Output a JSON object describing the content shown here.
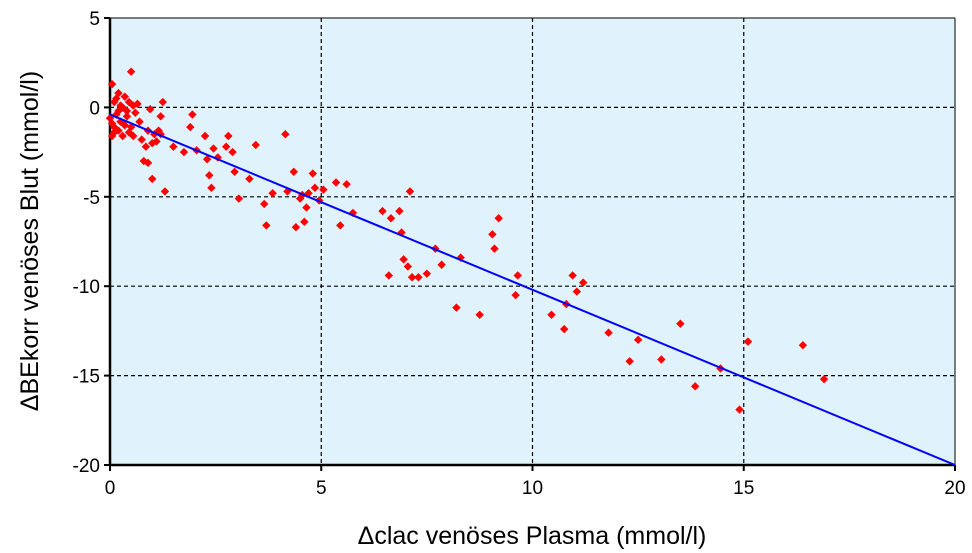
{
  "chart_data": {
    "type": "scatter",
    "title": "",
    "xlabel": "Δclac venöses Plasma (mmol/l)",
    "ylabel": "ΔBEkorr venöses Blut (mmol/l)",
    "xlim": [
      0,
      20
    ],
    "ylim": [
      -20,
      5
    ],
    "xticks": [
      "0",
      "5",
      "10",
      "15",
      "20"
    ],
    "yticks": [
      "5",
      "0",
      "-5",
      "-10",
      "-15",
      "-20"
    ],
    "xtick_values": [
      0,
      5,
      10,
      15,
      20
    ],
    "ytick_values": [
      5,
      0,
      -5,
      -10,
      -15,
      -20
    ],
    "grid": true,
    "grid_style": "dashed",
    "background_color": "#e0f2fb",
    "point_color": "#ff0000",
    "line_color": "#0000ff",
    "regression_line": {
      "x": [
        0,
        20
      ],
      "y": [
        -0.4,
        -20
      ]
    },
    "series": [
      {
        "points": [
          [
            0.05,
            1.3
          ],
          [
            0.1,
            0.3
          ],
          [
            0.15,
            0.5
          ],
          [
            0.2,
            0.8
          ],
          [
            0.25,
            0.1
          ],
          [
            0.3,
            0.0
          ],
          [
            0.35,
            0.6
          ],
          [
            0.4,
            -0.2
          ],
          [
            0.45,
            0.3
          ],
          [
            0.5,
            2.0
          ],
          [
            0.55,
            0.1
          ],
          [
            0.6,
            -0.3
          ],
          [
            0.65,
            0.2
          ],
          [
            0.0,
            -0.6
          ],
          [
            0.05,
            -0.9
          ],
          [
            0.1,
            -1.1
          ],
          [
            0.15,
            -0.4
          ],
          [
            0.2,
            -1.3
          ],
          [
            0.25,
            -0.8
          ],
          [
            0.3,
            -1.6
          ],
          [
            0.35,
            -1.0
          ],
          [
            0.4,
            -0.5
          ],
          [
            0.45,
            -1.4
          ],
          [
            0.05,
            -1.6
          ],
          [
            0.1,
            -1.4
          ],
          [
            0.2,
            -0.2
          ],
          [
            0.5,
            -1.1
          ],
          [
            0.55,
            -1.6
          ],
          [
            0.7,
            -0.8
          ],
          [
            0.75,
            -1.8
          ],
          [
            0.8,
            -3.0
          ],
          [
            0.85,
            -2.2
          ],
          [
            0.9,
            -1.3
          ],
          [
            0.95,
            -0.1
          ],
          [
            1.0,
            -4.0
          ],
          [
            1.05,
            -1.5
          ],
          [
            1.1,
            -1.9
          ],
          [
            1.15,
            -1.3
          ],
          [
            1.2,
            -0.5
          ],
          [
            1.25,
            0.3
          ],
          [
            1.3,
            -4.7
          ],
          [
            0.9,
            -3.1
          ],
          [
            1.0,
            -2.0
          ],
          [
            1.2,
            -1.5
          ],
          [
            1.5,
            -2.2
          ],
          [
            1.75,
            -2.5
          ],
          [
            1.9,
            -1.1
          ],
          [
            1.95,
            -0.4
          ],
          [
            2.05,
            -2.4
          ],
          [
            2.25,
            -1.6
          ],
          [
            2.3,
            -2.9
          ],
          [
            2.35,
            -3.8
          ],
          [
            2.4,
            -4.5
          ],
          [
            2.45,
            -2.3
          ],
          [
            2.55,
            -2.8
          ],
          [
            2.75,
            -2.2
          ],
          [
            2.8,
            -1.6
          ],
          [
            2.9,
            -2.5
          ],
          [
            2.95,
            -3.6
          ],
          [
            3.05,
            -5.1
          ],
          [
            3.3,
            -4.0
          ],
          [
            3.45,
            -2.1
          ],
          [
            3.65,
            -5.4
          ],
          [
            3.7,
            -6.6
          ],
          [
            3.85,
            -4.8
          ],
          [
            4.15,
            -1.5
          ],
          [
            4.2,
            -4.7
          ],
          [
            4.35,
            -3.6
          ],
          [
            4.4,
            -6.7
          ],
          [
            4.5,
            -5.1
          ],
          [
            4.55,
            -4.9
          ],
          [
            4.6,
            -6.4
          ],
          [
            4.65,
            -5.6
          ],
          [
            4.7,
            -4.8
          ],
          [
            4.8,
            -3.7
          ],
          [
            4.85,
            -4.5
          ],
          [
            4.95,
            -5.2
          ],
          [
            5.05,
            -4.6
          ],
          [
            5.35,
            -4.2
          ],
          [
            5.45,
            -6.6
          ],
          [
            5.6,
            -4.3
          ],
          [
            5.75,
            -5.9
          ],
          [
            6.45,
            -5.8
          ],
          [
            6.6,
            -9.4
          ],
          [
            6.65,
            -6.2
          ],
          [
            6.85,
            -5.8
          ],
          [
            6.9,
            -7.0
          ],
          [
            6.95,
            -8.5
          ],
          [
            7.05,
            -8.9
          ],
          [
            7.1,
            -4.7
          ],
          [
            7.15,
            -9.5
          ],
          [
            7.3,
            -9.5
          ],
          [
            7.5,
            -9.3
          ],
          [
            7.7,
            -7.9
          ],
          [
            7.85,
            -8.8
          ],
          [
            8.2,
            -11.2
          ],
          [
            8.3,
            -8.4
          ],
          [
            8.75,
            -11.6
          ],
          [
            9.05,
            -7.1
          ],
          [
            9.1,
            -7.9
          ],
          [
            9.2,
            -6.2
          ],
          [
            9.6,
            -10.5
          ],
          [
            9.65,
            -9.4
          ],
          [
            10.45,
            -11.6
          ],
          [
            10.75,
            -12.4
          ],
          [
            10.8,
            -11.0
          ],
          [
            10.95,
            -9.4
          ],
          [
            11.05,
            -10.3
          ],
          [
            11.2,
            -9.8
          ],
          [
            11.8,
            -12.6
          ],
          [
            12.3,
            -14.2
          ],
          [
            12.5,
            -13.0
          ],
          [
            13.05,
            -14.1
          ],
          [
            13.5,
            -12.1
          ],
          [
            13.85,
            -15.6
          ],
          [
            14.45,
            -14.6
          ],
          [
            14.9,
            -16.9
          ],
          [
            15.1,
            -13.1
          ],
          [
            16.4,
            -13.3
          ],
          [
            16.9,
            -15.2
          ]
        ]
      }
    ]
  }
}
